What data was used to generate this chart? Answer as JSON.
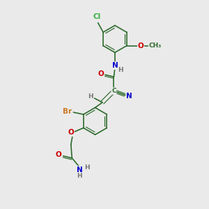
{
  "bg_color": "#eaeaea",
  "bond_color": "#2d6b2d",
  "atom_colors": {
    "C": "#2d6b2d",
    "N": "#0000cc",
    "O": "#cc0000",
    "Cl": "#3cb043",
    "Br": "#cc7722",
    "H": "#777777"
  },
  "figsize": [
    3.0,
    3.0
  ],
  "dpi": 100
}
